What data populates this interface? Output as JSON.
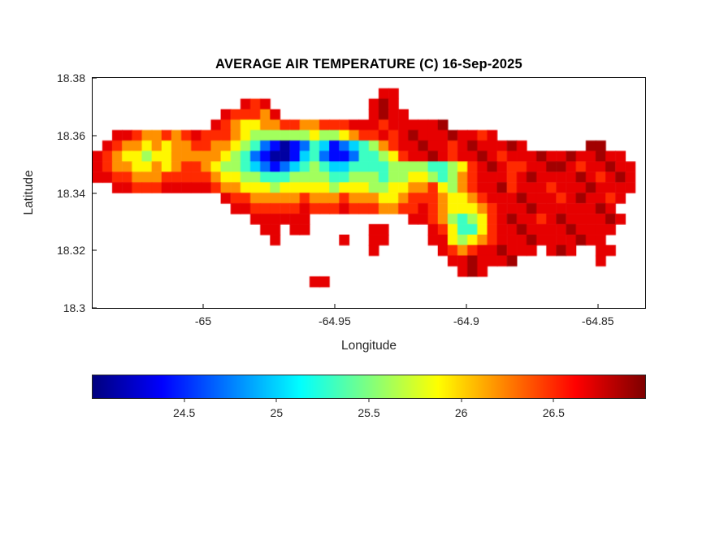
{
  "figure": {
    "title": "AVERAGE AIR TEMPERATURE (C) 16-Sep-2025",
    "xlabel": "Longitude",
    "ylabel": "Latitude"
  },
  "chart_data": {
    "type": "heatmap",
    "title": "AVERAGE AIR TEMPERATURE (C) 16-Sep-2025",
    "xlabel": "Longitude",
    "ylabel": "Latitude",
    "xlim": [
      -65.042,
      -64.832
    ],
    "ylim": [
      18.3,
      18.38
    ],
    "xticks": [
      -65,
      -64.95,
      -64.9,
      -64.85
    ],
    "xtick_labels": [
      "-65",
      "-64.95",
      "-64.9",
      "-64.85"
    ],
    "yticks": [
      18.3,
      18.32,
      18.34,
      18.36,
      18.38
    ],
    "ytick_labels": [
      "18.3",
      "18.32",
      "18.34",
      "18.36",
      "18.38"
    ],
    "colormap": "jet",
    "clim": [
      24,
      27
    ],
    "grid_on": false,
    "colorbar": {
      "orientation": "horizontal",
      "ticks": [
        24.5,
        25,
        25.5,
        26,
        26.5
      ],
      "tick_labels": [
        "24.5",
        "25",
        "25.5",
        "26",
        "26.5"
      ]
    },
    "grid": {
      "ncols": 56,
      "nrows": 22,
      "legend": {
        "0": 24.1,
        "1": 24.4,
        "2": 24.7,
        "3": 25.0,
        "4": 25.3,
        "5": 25.6,
        "6": 25.9,
        "7": 26.2,
        "8": 26.5,
        "9": 26.7,
        "a": 26.9
      },
      "cells": [
        [
          1,
          [
            [
              29,
              "99"
            ]
          ]
        ],
        [
          2,
          [
            [
              15,
              "989"
            ],
            [
              28,
              "9a9"
            ]
          ]
        ],
        [
          3,
          [
            [
              13,
              "988879"
            ],
            [
              28,
              "9a99"
            ]
          ]
        ],
        [
          4,
          [
            [
              12,
              "98766778877888999899999a"
            ]
          ]
        ],
        [
          5,
          [
            [
              2,
              "998778789888765555556556788989a999a9989"
            ]
          ]
        ],
        [
          6,
          [
            [
              1,
              "98776767788776542101243123457899a9989a999a9"
            ],
            [
              50,
              "aa"
            ]
          ]
        ],
        [
          7,
          [
            [
              0,
              "9876656677777654210013421124456899a9899a98999a99a99a99"
            ]
          ]
        ],
        [
          8,
          [
            [
              0,
              "9877667678876554321234543344445555445689a98899aa9899a99"
            ]
          ]
        ],
        [
          9,
          [
            [
              0,
              "99887778888876655444555544555455665457899989a9999a989a9"
            ]
          ]
        ],
        [
          10,
          [
            [
              2,
              "998889999987766656666656665566778657899a89998999a9999"
            ]
          ]
        ],
        [
          11,
          [
            [
              13,
              "988777778777877766788876678999a99989a9989"
            ]
          ]
        ],
        [
          12,
          [
            [
              14,
              "998888898889888778898766678999a999999a9"
            ]
          ]
        ],
        [
          13,
          [
            [
              16,
              "999999"
            ],
            [
              32,
              "9987545689a9989a9999a9"
            ]
          ]
        ],
        [
          14,
          [
            [
              17,
              "99"
            ],
            [
              20,
              "99"
            ],
            [
              28,
              "99"
            ],
            [
              34,
              "986446899a9999a9999"
            ]
          ]
        ],
        [
          15,
          [
            [
              18,
              "9"
            ],
            [
              25,
              "9"
            ],
            [
              28,
              "99"
            ],
            [
              34,
              "9965678999a9999a99"
            ]
          ]
        ],
        [
          16,
          [
            [
              28,
              "9"
            ],
            [
              35,
              "987899a999"
            ],
            [
              46,
              "9a9"
            ],
            [
              51,
              "99"
            ]
          ]
        ],
        [
          17,
          [
            [
              36,
              "99a999a"
            ],
            [
              51,
              "9"
            ]
          ]
        ],
        [
          18,
          [
            [
              37,
              "9a9"
            ]
          ]
        ],
        [
          19,
          [
            [
              22,
              "99"
            ]
          ]
        ]
      ]
    }
  }
}
